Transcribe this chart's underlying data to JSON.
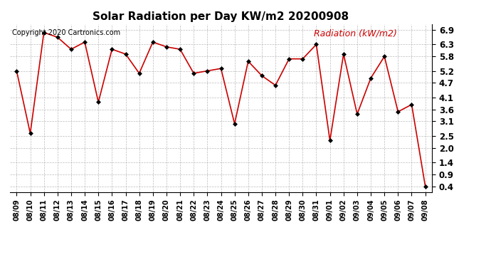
{
  "title": "Solar Radiation per Day KW/m2 20200908",
  "copyright_text": "Copyright 2020 Cartronics.com",
  "legend_label": "Radiation (kW/m2)",
  "dates": [
    "08/09",
    "08/10",
    "08/11",
    "08/12",
    "08/13",
    "08/14",
    "08/15",
    "08/16",
    "08/17",
    "08/18",
    "08/19",
    "08/20",
    "08/21",
    "08/22",
    "08/23",
    "08/24",
    "08/25",
    "08/26",
    "08/27",
    "08/28",
    "08/29",
    "08/30",
    "08/31",
    "09/01",
    "09/02",
    "09/03",
    "09/04",
    "09/05",
    "09/06",
    "09/07",
    "09/08"
  ],
  "values": [
    5.2,
    2.6,
    6.8,
    6.6,
    6.1,
    6.4,
    3.9,
    6.1,
    5.9,
    5.1,
    6.4,
    6.2,
    6.1,
    5.1,
    5.2,
    5.3,
    3.0,
    5.6,
    5.0,
    4.6,
    5.7,
    5.7,
    6.3,
    2.3,
    5.9,
    3.4,
    4.9,
    5.8,
    3.5,
    3.8,
    0.4
  ],
  "line_color": "#cc0000",
  "marker_color": "#000000",
  "background_color": "#ffffff",
  "grid_color": "#aaaaaa",
  "title_color": "#000000",
  "copyright_color": "#000000",
  "legend_color": "#cc0000",
  "ylim": [
    0.15,
    7.15
  ],
  "yticks": [
    0.4,
    0.9,
    1.4,
    2.0,
    2.5,
    3.1,
    3.6,
    4.1,
    4.7,
    5.2,
    5.8,
    6.3,
    6.9
  ],
  "ytick_labels": [
    "0.4",
    "0.9",
    "1.4",
    "2.0",
    "2.5",
    "3.1",
    "3.6",
    "4.1",
    "4.7",
    "5.2",
    "5.8",
    "6.3",
    "6.9"
  ]
}
